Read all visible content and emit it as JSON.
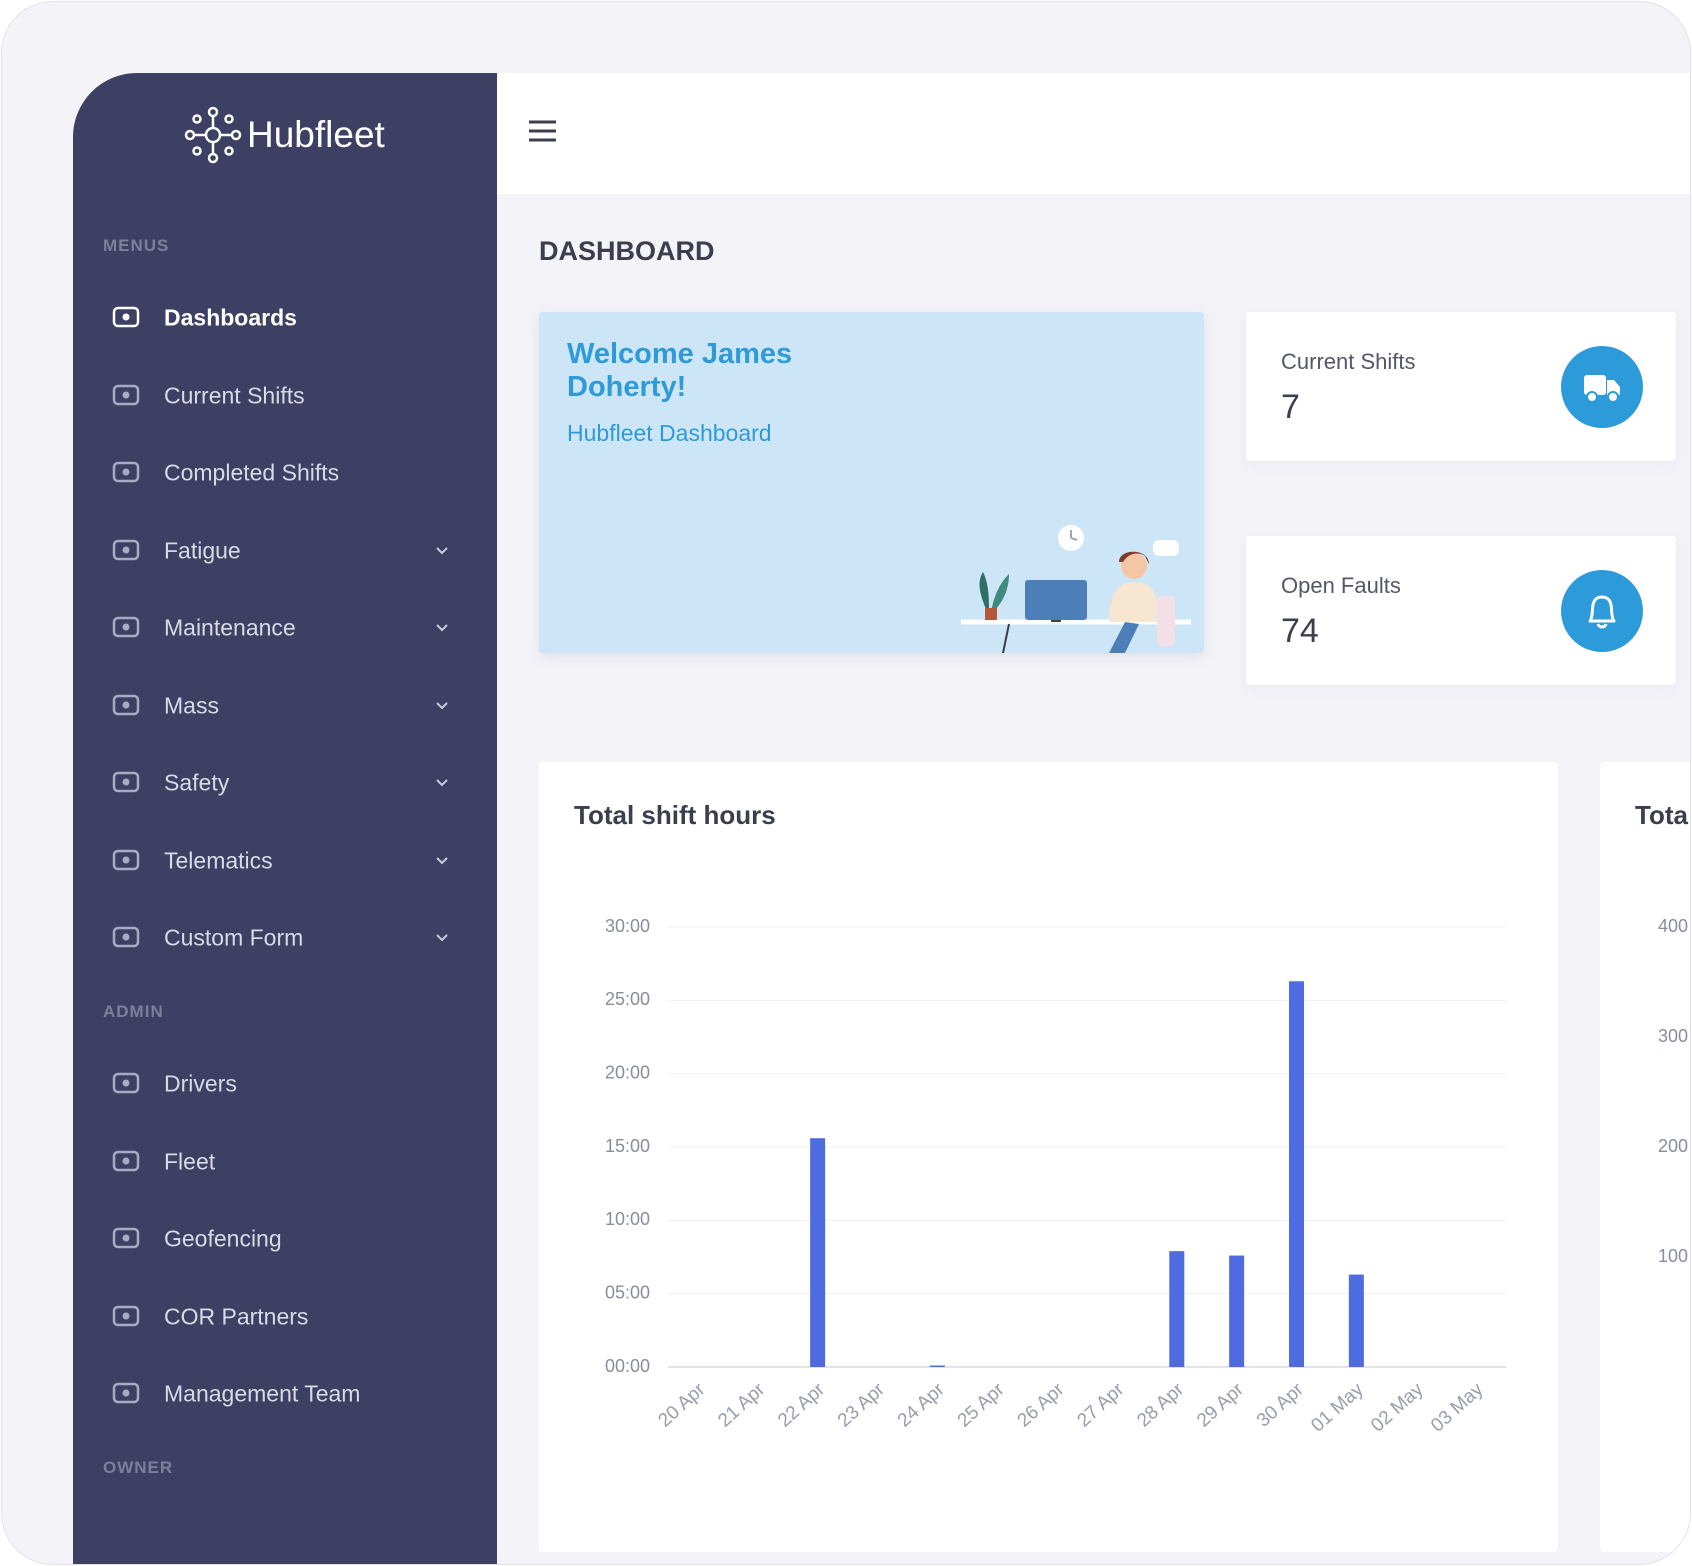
{
  "brand": "Hubfleet",
  "sidebar": {
    "sections": [
      {
        "heading": "MENUS",
        "items": [
          {
            "label": "Dashboards",
            "active": true
          },
          {
            "label": "Current Shifts"
          },
          {
            "label": "Completed Shifts"
          },
          {
            "label": "Fatigue",
            "expandable": true
          },
          {
            "label": "Maintenance",
            "expandable": true
          },
          {
            "label": "Mass",
            "expandable": true
          },
          {
            "label": "Safety",
            "expandable": true
          },
          {
            "label": "Telematics",
            "expandable": true
          },
          {
            "label": "Custom Form",
            "expandable": true
          }
        ]
      },
      {
        "heading": "ADMIN",
        "items": [
          {
            "label": "Drivers"
          },
          {
            "label": "Fleet"
          },
          {
            "label": "Geofencing"
          },
          {
            "label": "COR Partners"
          },
          {
            "label": "Management Team"
          }
        ]
      },
      {
        "heading": "OWNER",
        "items": []
      }
    ]
  },
  "page_title": "DASHBOARD",
  "welcome": {
    "title": "Welcome James Doherty!",
    "subtitle": "Hubfleet Dashboard"
  },
  "stats": [
    {
      "label": "Current Shifts",
      "value": 7
    },
    {
      "label": "Open Faults",
      "value": 74
    }
  ],
  "chart_data": {
    "type": "bar",
    "title": "Total shift hours",
    "categories": [
      "20 Apr",
      "21 Apr",
      "22 Apr",
      "23 Apr",
      "24 Apr",
      "25 Apr",
      "26 Apr",
      "27 Apr",
      "28 Apr",
      "29 Apr",
      "30 Apr",
      "01 May",
      "02 May",
      "03 May"
    ],
    "values": [
      0,
      0,
      15.6,
      0,
      0.1,
      0,
      0,
      0,
      7.9,
      7.6,
      26.3,
      6.3,
      0,
      0
    ],
    "color": "#4e6be0",
    "ylim": [
      0,
      30
    ],
    "yticks": [
      {
        "value": 0,
        "label": "00:00"
      },
      {
        "value": 5,
        "label": "05:00"
      },
      {
        "value": 10,
        "label": "10:00"
      },
      {
        "value": 15,
        "label": "15:00"
      },
      {
        "value": 20,
        "label": "20:00"
      },
      {
        "value": 25,
        "label": "25:00"
      },
      {
        "value": 30,
        "label": "30:00"
      }
    ],
    "grid": true
  },
  "second_panel": {
    "title": "Tota",
    "ticks": [
      "400",
      "300",
      "200",
      "100"
    ]
  }
}
